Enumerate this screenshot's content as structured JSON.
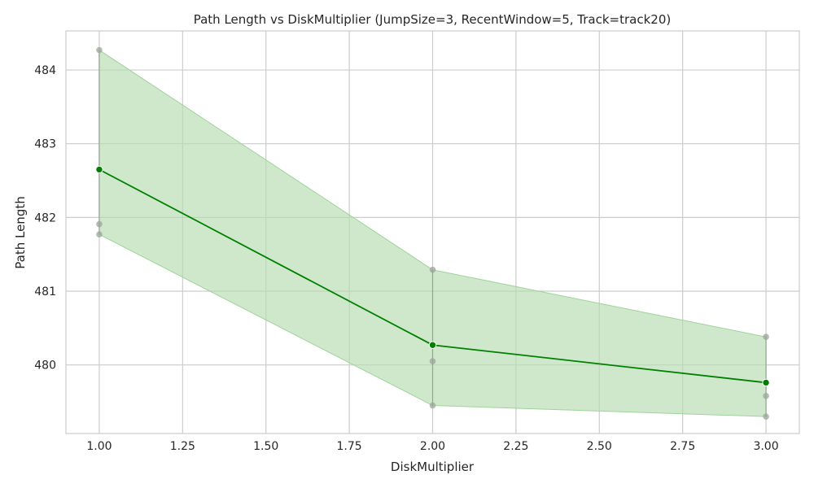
{
  "chart_data": {
    "type": "line",
    "title": "Path Length vs DiskMultiplier (JumpSize=3, RecentWindow=5, Track=track20)",
    "xlabel": "DiskMultiplier",
    "ylabel": "Path Length",
    "xlim": [
      0.9,
      3.1
    ],
    "ylim": [
      479.07,
      484.53
    ],
    "x_ticks": [
      1.0,
      1.25,
      1.5,
      1.75,
      2.0,
      2.25,
      2.5,
      2.75,
      3.0
    ],
    "x_tick_labels": [
      "1.00",
      "1.25",
      "1.50",
      "1.75",
      "2.00",
      "2.25",
      "2.50",
      "2.75",
      "3.00"
    ],
    "y_ticks": [
      480,
      481,
      482,
      483,
      484
    ],
    "y_tick_labels": [
      "480",
      "481",
      "482",
      "483",
      "484"
    ],
    "grid": true,
    "colors": {
      "line": "#008000",
      "band": "#b5dbb1",
      "raw_points": "#9aa69a",
      "grid": "#cccccc"
    },
    "series": [
      {
        "x": [
          1.0,
          2.0,
          3.0
        ],
        "mean": [
          482.65,
          480.27,
          479.76
        ],
        "band_lower": [
          481.77,
          479.45,
          479.3
        ],
        "band_upper": [
          484.27,
          481.29,
          480.38
        ]
      }
    ],
    "raw_points": [
      {
        "x": 1.0,
        "y": 484.27
      },
      {
        "x": 1.0,
        "y": 481.91
      },
      {
        "x": 1.0,
        "y": 481.77
      },
      {
        "x": 2.0,
        "y": 481.29
      },
      {
        "x": 2.0,
        "y": 480.05
      },
      {
        "x": 2.0,
        "y": 479.45
      },
      {
        "x": 3.0,
        "y": 480.38
      },
      {
        "x": 3.0,
        "y": 479.58
      },
      {
        "x": 3.0,
        "y": 479.3
      }
    ]
  }
}
